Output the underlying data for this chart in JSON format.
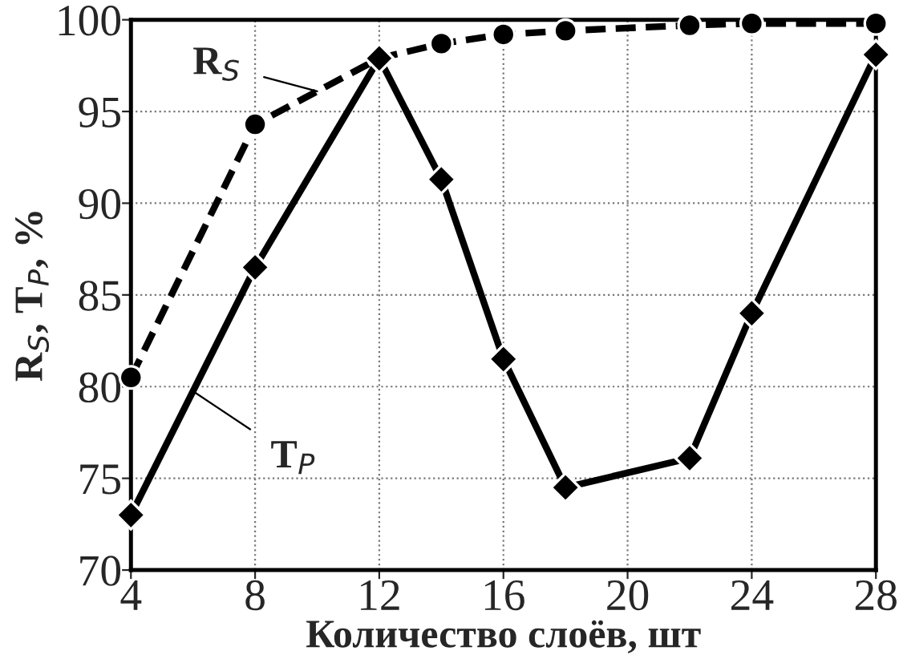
{
  "chart_data": {
    "type": "line",
    "xlabel": "Количество слоёв, шт",
    "ylabel": "R$_{S}$, T$_{P}$, %",
    "x": [
      4,
      8,
      12,
      14,
      16,
      18,
      22,
      24,
      28
    ],
    "series": [
      {
        "color": "#000000",
        "line_style": "dashed",
        "marker": "circle",
        "values": [
          80.5,
          94.3,
          97.9,
          98.7,
          99.2,
          99.4,
          99.7,
          99.8,
          99.8
        ]
      },
      {
        "color": "#000000",
        "line_style": "solid",
        "marker": "diamond",
        "values": [
          73.0,
          86.5,
          97.9,
          91.3,
          81.5,
          74.5,
          76.1,
          84.0,
          98.1
        ]
      }
    ],
    "annotations": [
      {
        "text": "R$_{S}$",
        "x": 10,
        "y": 96.1
      },
      {
        "text": "T$_{P}$",
        "x": 6,
        "y": 79.75
      }
    ],
    "xlim": [
      4,
      28
    ],
    "xticks": [
      4,
      8,
      12,
      16,
      20,
      24,
      28
    ],
    "ylim": [
      70,
      100
    ],
    "yticks": [
      70,
      75,
      80,
      85,
      90,
      95,
      100
    ],
    "grid": true
  }
}
